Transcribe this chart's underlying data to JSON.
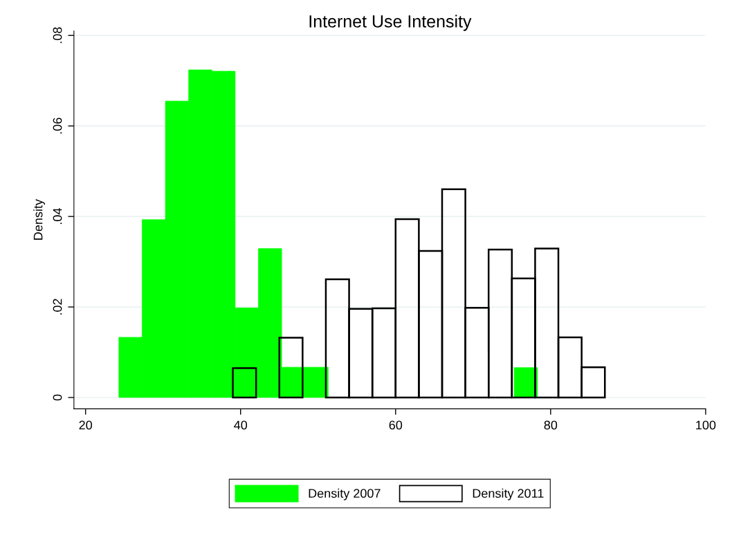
{
  "chart_data": {
    "type": "bar",
    "title": "Internet Use Intensity",
    "ylabel": "Density",
    "series": [
      {
        "name": "Density 2007",
        "color": "#00ff00",
        "x": [
          25.8,
          28.8,
          31.8,
          34.8,
          37.8,
          40.8,
          43.8,
          46.8,
          49.8,
          76.8
        ],
        "values": [
          0.0133,
          0.0393,
          0.0655,
          0.0724,
          0.0721,
          0.0198,
          0.0329,
          0.0067,
          0.0067,
          0.0066
        ]
      },
      {
        "name": "Density 2011",
        "color": "#000000",
        "x": [
          40.5,
          46.5,
          52.5,
          55.5,
          58.5,
          61.5,
          64.5,
          67.5,
          70.5,
          73.5,
          76.5,
          79.5,
          82.5,
          85.5
        ],
        "values": [
          0.0065,
          0.0132,
          0.0261,
          0.0196,
          0.0197,
          0.0394,
          0.0324,
          0.046,
          0.0198,
          0.0327,
          0.0263,
          0.0329,
          0.0133,
          0.0067
        ]
      }
    ],
    "xlim": [
      18.5,
      100
    ],
    "xticks": [
      20,
      40,
      60,
      80,
      100
    ],
    "ylim": [
      -0.0025,
      0.081
    ],
    "yticks": [
      {
        "value": 0,
        "label": "0"
      },
      {
        "value": 0.02,
        "label": ".02"
      },
      {
        "value": 0.04,
        "label": ".04"
      },
      {
        "value": 0.06,
        "label": ".06"
      },
      {
        "value": 0.08,
        "label": ".08"
      }
    ],
    "grid": "y",
    "legend": "bottom"
  }
}
